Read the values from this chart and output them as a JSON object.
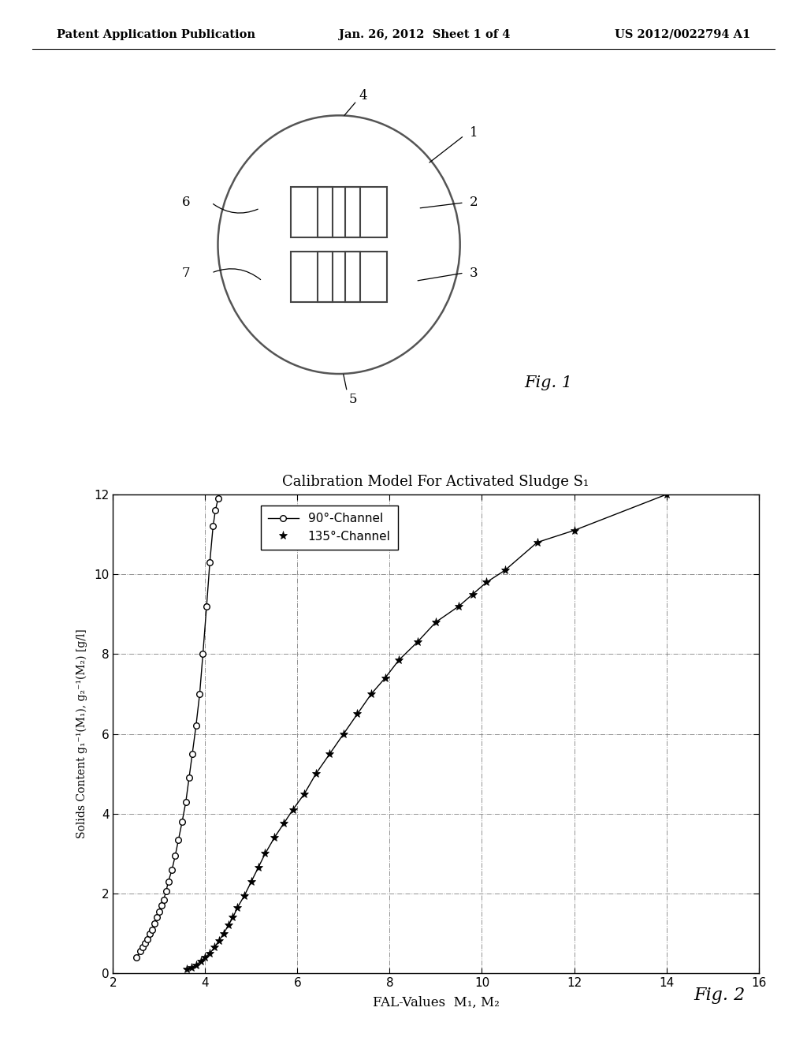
{
  "header_left": "Patent Application Publication",
  "header_center": "Jan. 26, 2012  Sheet 1 of 4",
  "header_right": "US 2012/0022794 A1",
  "fig1_label": "Fig. 1",
  "fig2_label": "Fig. 2",
  "title": "Calibration Model For Activated Sludge S₁",
  "xlabel": "FAL-Values  M₁, M₂",
  "ylabel": "Solids Content g₁⁻¹(M₁), g₂⁻¹(M₂) [g/l]",
  "legend1": "90°-Channel",
  "legend2": "135°-Channel",
  "xlim": [
    2,
    16
  ],
  "ylim": [
    0,
    12
  ],
  "xticks": [
    2,
    4,
    6,
    8,
    10,
    12,
    14,
    16
  ],
  "yticks": [
    0,
    2,
    4,
    6,
    8,
    10,
    12
  ],
  "bg_color": "#ffffff",
  "circle_data_x": [
    2.5,
    2.6,
    2.65,
    2.7,
    2.75,
    2.8,
    2.85,
    2.9,
    2.95,
    3.0,
    3.05,
    3.1,
    3.15,
    3.2,
    3.28,
    3.35,
    3.42,
    3.5,
    3.58,
    3.65,
    3.72,
    3.8,
    3.88,
    3.95,
    4.03,
    4.1,
    4.17,
    4.22,
    4.28,
    4.33
  ],
  "circle_data_y": [
    0.4,
    0.55,
    0.65,
    0.75,
    0.85,
    1.0,
    1.1,
    1.25,
    1.4,
    1.55,
    1.7,
    1.85,
    2.05,
    2.3,
    2.6,
    2.95,
    3.35,
    3.8,
    4.3,
    4.9,
    5.5,
    6.2,
    7.0,
    8.0,
    9.2,
    10.3,
    11.2,
    11.6,
    11.9,
    12.1
  ],
  "star_data_x": [
    3.6,
    3.7,
    3.8,
    3.9,
    4.0,
    4.1,
    4.2,
    4.3,
    4.4,
    4.5,
    4.6,
    4.7,
    4.85,
    5.0,
    5.15,
    5.3,
    5.5,
    5.7,
    5.9,
    6.15,
    6.4,
    6.7,
    7.0,
    7.3,
    7.6,
    7.9,
    8.2,
    8.6,
    9.0,
    9.5,
    9.8,
    10.1,
    10.5,
    11.2,
    12.0,
    14.0,
    14.5
  ],
  "star_data_y": [
    0.1,
    0.15,
    0.2,
    0.3,
    0.4,
    0.5,
    0.65,
    0.82,
    1.0,
    1.2,
    1.4,
    1.65,
    1.95,
    2.3,
    2.65,
    3.0,
    3.4,
    3.75,
    4.1,
    4.5,
    5.0,
    5.5,
    6.0,
    6.5,
    7.0,
    7.4,
    7.85,
    8.3,
    8.8,
    9.2,
    9.5,
    9.8,
    10.1,
    10.8,
    11.1,
    12.0,
    12.2
  ]
}
